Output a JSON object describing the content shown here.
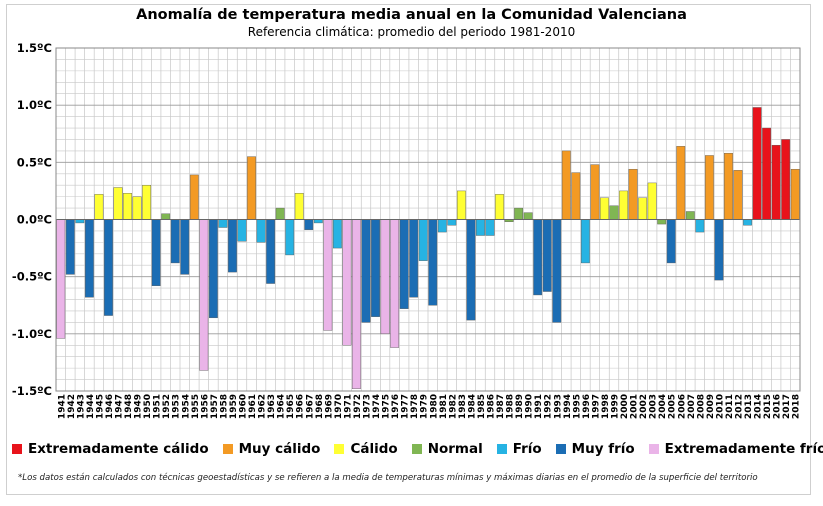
{
  "chart_data": {
    "type": "bar",
    "title": "Anomalía de temperatura media anual en la Comunidad Valenciana",
    "subtitle": "Referencia climática: promedio del periodo 1981-2010",
    "ylim": [
      -1.5,
      1.5
    ],
    "yticks": [
      {
        "value": 1.5,
        "label": "1.5ºC"
      },
      {
        "value": 1.0,
        "label": "1.0ºC"
      },
      {
        "value": 0.5,
        "label": "0.5ºC"
      },
      {
        "value": 0.0,
        "label": "0.0ºC"
      },
      {
        "value": -0.5,
        "label": "-0.5ºC"
      },
      {
        "value": -1.0,
        "label": "-1.0ºC"
      },
      {
        "value": -1.5,
        "label": "-1.5ºC"
      }
    ],
    "years": [
      1941,
      1942,
      1943,
      1944,
      1945,
      1946,
      1947,
      1948,
      1949,
      1950,
      1951,
      1952,
      1953,
      1954,
      1955,
      1956,
      1957,
      1958,
      1959,
      1960,
      1961,
      1962,
      1963,
      1964,
      1965,
      1966,
      1967,
      1968,
      1969,
      1970,
      1971,
      1972,
      1973,
      1974,
      1975,
      1976,
      1977,
      1978,
      1979,
      1980,
      1981,
      1982,
      1983,
      1984,
      1985,
      1986,
      1987,
      1988,
      1989,
      1990,
      1991,
      1992,
      1993,
      1994,
      1995,
      1996,
      1997,
      1998,
      1999,
      2000,
      2001,
      2002,
      2003,
      2004,
      2005,
      2006,
      2007,
      2008,
      2009,
      2010,
      2011,
      2012,
      2013,
      2014,
      2015,
      2016,
      2017,
      2018
    ],
    "values": [
      -1.04,
      -0.48,
      -0.03,
      -0.68,
      0.22,
      -0.84,
      0.28,
      0.23,
      0.2,
      0.3,
      -0.58,
      0.05,
      -0.38,
      -0.48,
      0.39,
      -1.32,
      -0.86,
      -0.07,
      -0.46,
      -0.19,
      0.55,
      -0.2,
      -0.56,
      0.1,
      -0.31,
      0.23,
      -0.09,
      -0.03,
      -0.97,
      -0.25,
      -1.1,
      -1.48,
      -0.9,
      -0.85,
      -1.0,
      -1.12,
      -0.78,
      -0.68,
      -0.36,
      -0.75,
      -0.11,
      -0.05,
      0.25,
      -0.88,
      -0.14,
      -0.14,
      0.22,
      -0.02,
      0.1,
      0.06,
      -0.66,
      -0.63,
      -0.9,
      0.6,
      0.41,
      -0.38,
      0.48,
      0.19,
      0.12,
      0.25,
      0.44,
      0.19,
      0.32,
      -0.04,
      -0.38,
      0.64,
      0.07,
      -0.11,
      0.56,
      -0.53,
      0.58,
      0.43,
      -0.05,
      0.98,
      0.8,
      0.65,
      0.7,
      0.44
    ],
    "categories_by_year": [
      "ef",
      "mf",
      "f",
      "mf",
      "c",
      "mf",
      "c",
      "c",
      "c",
      "c",
      "mf",
      "n",
      "mf",
      "mf",
      "mc",
      "ef",
      "mf",
      "f",
      "mf",
      "f",
      "mc",
      "f",
      "mf",
      "n",
      "f",
      "c",
      "mf",
      "f",
      "ef",
      "f",
      "ef",
      "ef",
      "mf",
      "mf",
      "ef",
      "ef",
      "mf",
      "mf",
      "f",
      "mf",
      "f",
      "f",
      "c",
      "mf",
      "f",
      "f",
      "c",
      "n",
      "n",
      "n",
      "mf",
      "mf",
      "mf",
      "mc",
      "mc",
      "f",
      "mc",
      "c",
      "n",
      "c",
      "mc",
      "c",
      "c",
      "n",
      "mf",
      "mc",
      "n",
      "f",
      "mc",
      "mf",
      "mc",
      "mc",
      "f",
      "ec",
      "ec",
      "ec",
      "ec",
      "mc"
    ],
    "xlabel": "",
    "ylabel": "",
    "grid": true
  },
  "legend": [
    {
      "key": "ec",
      "label": "Extremadamente cálido",
      "color": "#e8131b"
    },
    {
      "key": "mc",
      "label": "Muy cálido",
      "color": "#f39a24"
    },
    {
      "key": "c",
      "label": "Cálido",
      "color": "#ffff33"
    },
    {
      "key": "n",
      "label": "Normal",
      "color": "#80b653"
    },
    {
      "key": "f",
      "label": "Frío",
      "color": "#26b3e3"
    },
    {
      "key": "mf",
      "label": "Muy frío",
      "color": "#1b6db4"
    },
    {
      "key": "ef",
      "label": "Extremadamente frío",
      "color": "#eab4e8"
    }
  ],
  "footnote": "*Los datos están calculados con técnicas geoestadísticas y se refieren a la media de temperaturas mínimas y máximas diarias en el promedio de la superficie del territorio"
}
